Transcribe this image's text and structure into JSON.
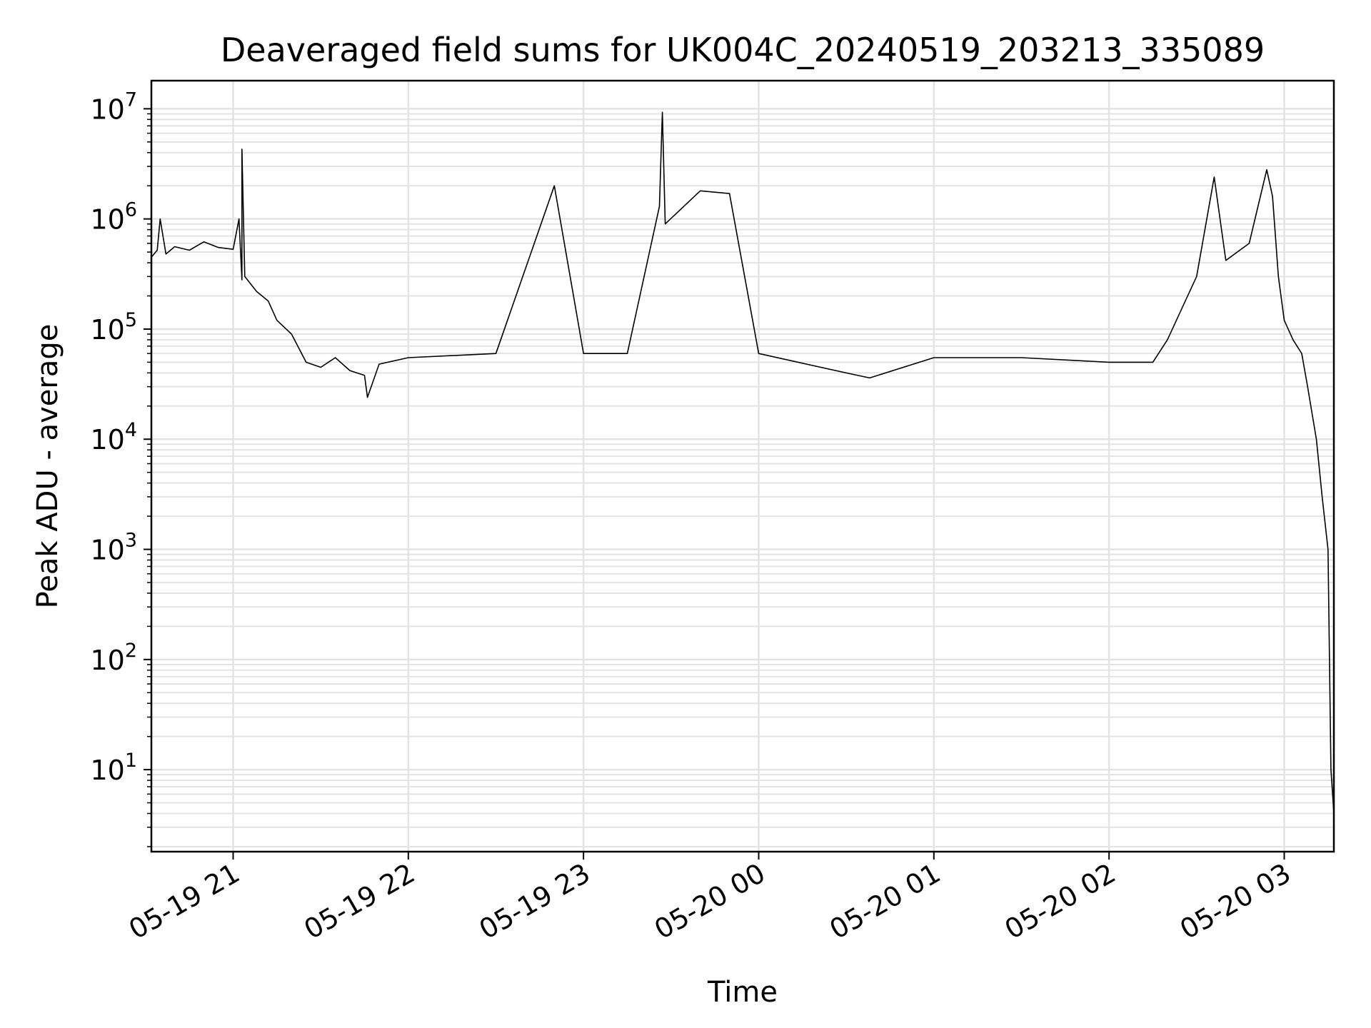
{
  "chart_data": {
    "type": "line",
    "title": "Deaveraged field sums for UK004C_20240519_203213_335089",
    "xlabel": "Time",
    "ylabel": "Peak ADU - average",
    "yscale": "log",
    "grid": true,
    "line_color": "#000000",
    "grid_color": "#e3e3e3",
    "xlim": [
      "2024-05-19 20:32",
      "2024-05-20 03:17"
    ],
    "ylim": [
      1.8,
      18000000
    ],
    "x_ticks": [
      {
        "t": "2024-05-19 21:00",
        "label": "05-19 21"
      },
      {
        "t": "2024-05-19 22:00",
        "label": "05-19 22"
      },
      {
        "t": "2024-05-19 23:00",
        "label": "05-19 23"
      },
      {
        "t": "2024-05-20 00:00",
        "label": "05-20 00"
      },
      {
        "t": "2024-05-20 01:00",
        "label": "05-20 01"
      },
      {
        "t": "2024-05-20 02:00",
        "label": "05-20 02"
      },
      {
        "t": "2024-05-20 03:00",
        "label": "05-20 03"
      }
    ],
    "y_ticks": [
      {
        "value": 10,
        "base": "10",
        "exp": "1"
      },
      {
        "value": 100,
        "base": "10",
        "exp": "2"
      },
      {
        "value": 1000,
        "base": "10",
        "exp": "3"
      },
      {
        "value": 10000,
        "base": "10",
        "exp": "4"
      },
      {
        "value": 100000,
        "base": "10",
        "exp": "5"
      },
      {
        "value": 1000000,
        "base": "10",
        "exp": "6"
      },
      {
        "value": 10000000,
        "base": "10",
        "exp": "7"
      }
    ],
    "series": [
      {
        "points": [
          [
            "2024-05-19 20:32",
            450000
          ],
          [
            "2024-05-19 20:34",
            520000
          ],
          [
            "2024-05-19 20:35",
            1000000
          ],
          [
            "2024-05-19 20:37",
            480000
          ],
          [
            "2024-05-19 20:40",
            560000
          ],
          [
            "2024-05-19 20:45",
            520000
          ],
          [
            "2024-05-19 20:50",
            620000
          ],
          [
            "2024-05-19 20:55",
            550000
          ],
          [
            "2024-05-19 21:00",
            530000
          ],
          [
            "2024-05-19 21:02",
            1000000
          ],
          [
            "2024-05-19 21:03",
            280000
          ],
          [
            "2024-05-19 21:03",
            4300000
          ],
          [
            "2024-05-19 21:04",
            300000
          ],
          [
            "2024-05-19 21:08",
            220000
          ],
          [
            "2024-05-19 21:12",
            180000
          ],
          [
            "2024-05-19 21:15",
            120000
          ],
          [
            "2024-05-19 21:20",
            90000
          ],
          [
            "2024-05-19 21:25",
            50000
          ],
          [
            "2024-05-19 21:30",
            45000
          ],
          [
            "2024-05-19 21:35",
            55000
          ],
          [
            "2024-05-19 21:40",
            42000
          ],
          [
            "2024-05-19 21:45",
            38000
          ],
          [
            "2024-05-19 21:46",
            24000
          ],
          [
            "2024-05-19 21:50",
            48000
          ],
          [
            "2024-05-19 22:00",
            55000
          ],
          [
            "2024-05-19 22:30",
            60000
          ],
          [
            "2024-05-19 22:50",
            2000000
          ],
          [
            "2024-05-19 23:00",
            60000
          ],
          [
            "2024-05-19 23:15",
            60000
          ],
          [
            "2024-05-19 23:26",
            1300000
          ],
          [
            "2024-05-19 23:27",
            9300000
          ],
          [
            "2024-05-19 23:28",
            900000
          ],
          [
            "2024-05-19 23:40",
            1800000
          ],
          [
            "2024-05-19 23:50",
            1700000
          ],
          [
            "2024-05-20 00:00",
            60000
          ],
          [
            "2024-05-20 00:30",
            40000
          ],
          [
            "2024-05-20 00:38",
            36000
          ],
          [
            "2024-05-20 01:00",
            55000
          ],
          [
            "2024-05-20 01:30",
            55000
          ],
          [
            "2024-05-20 02:00",
            50000
          ],
          [
            "2024-05-20 02:15",
            50000
          ],
          [
            "2024-05-20 02:20",
            80000
          ],
          [
            "2024-05-20 02:30",
            300000
          ],
          [
            "2024-05-20 02:36",
            2400000
          ],
          [
            "2024-05-20 02:40",
            420000
          ],
          [
            "2024-05-20 02:48",
            600000
          ],
          [
            "2024-05-20 02:54",
            2800000
          ],
          [
            "2024-05-20 02:56",
            1600000
          ],
          [
            "2024-05-20 02:58",
            300000
          ],
          [
            "2024-05-20 03:00",
            120000
          ],
          [
            "2024-05-20 03:03",
            80000
          ],
          [
            "2024-05-20 03:06",
            60000
          ],
          [
            "2024-05-20 03:08",
            30000
          ],
          [
            "2024-05-20 03:11",
            10000
          ],
          [
            "2024-05-20 03:13",
            3000
          ],
          [
            "2024-05-20 03:15",
            1000
          ],
          [
            "2024-05-20 03:16",
            10
          ],
          [
            "2024-05-20 03:17",
            4
          ]
        ]
      }
    ]
  }
}
